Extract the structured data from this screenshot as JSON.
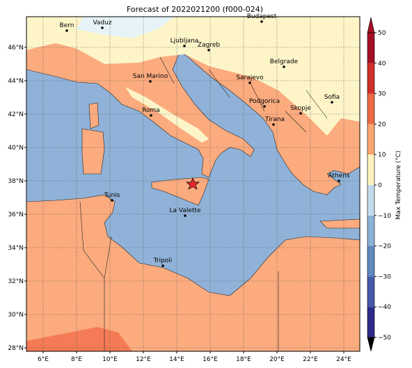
{
  "title": "Forecast of 2022021200 (f000-024)",
  "map": {
    "lon_ticks": [
      {
        "value": 6,
        "label": "6°E"
      },
      {
        "value": 8,
        "label": "8°E"
      },
      {
        "value": 10,
        "label": "10°E"
      },
      {
        "value": 12,
        "label": "12°E"
      },
      {
        "value": 14,
        "label": "14°E"
      },
      {
        "value": 16,
        "label": "16°E"
      },
      {
        "value": 18,
        "label": "18°E"
      },
      {
        "value": 20,
        "label": "20°E"
      },
      {
        "value": 22,
        "label": "22°E"
      },
      {
        "value": 24,
        "label": "24°E"
      }
    ],
    "lat_ticks": [
      {
        "value": 28,
        "label": "28°N"
      },
      {
        "value": 30,
        "label": "30°N"
      },
      {
        "value": 32,
        "label": "32°N"
      },
      {
        "value": 34,
        "label": "34°N"
      },
      {
        "value": 36,
        "label": "36°N"
      },
      {
        "value": 38,
        "label": "38°N"
      },
      {
        "value": 40,
        "label": "40°N"
      },
      {
        "value": 42,
        "label": "42°N"
      },
      {
        "value": 44,
        "label": "44°N"
      },
      {
        "value": 46,
        "label": "46°N"
      }
    ],
    "cities": [
      "Bern",
      "Vaduz",
      "Budapest",
      "Ljubljana",
      "Zagreb",
      "Belgrade",
      "San Marino",
      "Sarajevo",
      "Sofia",
      "Podgorica",
      "Skopje",
      "Roma",
      "Tirana",
      "Athens",
      "Tunis",
      "La Valette",
      "Tripoli"
    ]
  },
  "colorbar": {
    "label": "Max Temperature (°C)",
    "ticks": [
      {
        "value": -50,
        "label": "−50"
      },
      {
        "value": -40,
        "label": "−40"
      },
      {
        "value": -30,
        "label": "−30"
      },
      {
        "value": -20,
        "label": "−20"
      },
      {
        "value": -10,
        "label": "−10"
      },
      0,
      10,
      20,
      30,
      40,
      50
    ]
  }
}
